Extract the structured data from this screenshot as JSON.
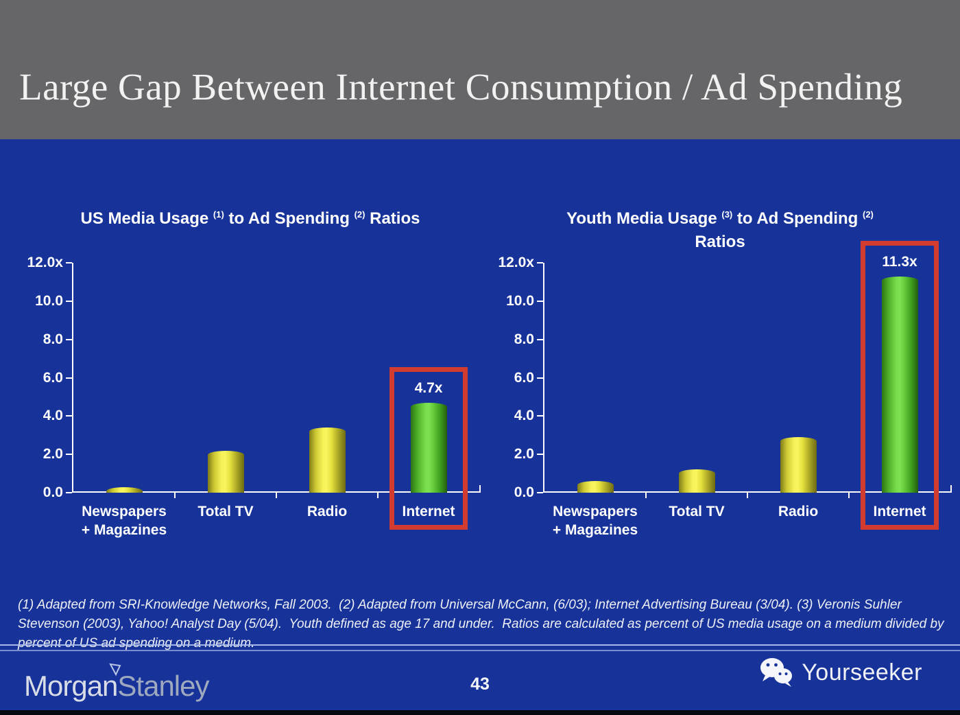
{
  "colors": {
    "header_bg": "#666669",
    "body_bg": "#17339a",
    "bar_yellow": "#f8f55e",
    "bar_green": "#7ee252",
    "highlight_red": "#d23b30",
    "axis_white": "#fdfdfd"
  },
  "header": {
    "title": "Large Gap Between Internet Consumption / Ad Spending"
  },
  "chart_data": [
    {
      "type": "bar",
      "title": "US Media Usage (1) to Ad Spending (2) Ratios",
      "title_lines": [
        [
          {
            "text": "US Media Usage "
          },
          {
            "text": "(1)",
            "sup": true
          },
          {
            "text": " to Ad Spending "
          },
          {
            "text": "(2)",
            "sup": true
          },
          {
            "text": " Ratios"
          }
        ]
      ],
      "categories": [
        "Newspapers + Magazines",
        "Total TV",
        "Radio",
        "Internet"
      ],
      "category_label_lines": [
        [
          "Newspapers",
          "+ Magazines"
        ],
        [
          "Total TV"
        ],
        [
          "Radio"
        ],
        [
          "Internet"
        ]
      ],
      "values": [
        0.3,
        2.2,
        3.4,
        4.7
      ],
      "bar_styles": [
        "yellow",
        "yellow",
        "yellow",
        "green"
      ],
      "data_labels": [
        "",
        "",
        "",
        "4.7x"
      ],
      "highlighted_index": 3,
      "ylim": [
        0,
        12
      ],
      "ytick_labels": [
        "12.0x",
        "10.0",
        "8.0",
        "6.0",
        "4.0",
        "2.0",
        "0.0"
      ],
      "grid": false,
      "legend": "none"
    },
    {
      "type": "bar",
      "title": "Youth Media Usage (3) to Ad Spending (2) Ratios",
      "title_lines": [
        [
          {
            "text": "Youth Media Usage "
          },
          {
            "text": "(3)",
            "sup": true
          },
          {
            "text": " to Ad Spending "
          },
          {
            "text": "(2)",
            "sup": true
          }
        ],
        [
          {
            "text": "Ratios"
          }
        ]
      ],
      "categories": [
        "Newspapers + Magazines",
        "Total TV",
        "Radio",
        "Internet"
      ],
      "category_label_lines": [
        [
          "Newspapers",
          "+ Magazines"
        ],
        [
          "Total TV"
        ],
        [
          "Radio"
        ],
        [
          "Internet"
        ]
      ],
      "values": [
        0.6,
        1.2,
        2.9,
        11.3
      ],
      "bar_styles": [
        "yellow",
        "yellow",
        "yellow",
        "green"
      ],
      "data_labels": [
        "",
        "",
        "",
        "11.3x"
      ],
      "highlighted_index": 3,
      "ylim": [
        0,
        12
      ],
      "ytick_labels": [
        "12.0x",
        "10.0",
        "8.0",
        "6.0",
        "4.0",
        "2.0",
        "0.0"
      ],
      "grid": false,
      "legend": "none"
    }
  ],
  "footnote": {
    "text": "(1) Adapted from SRI-Knowledge Networks, Fall 2003.  (2) Adapted from Universal McCann, (6/03); Internet Advertising Bureau (3/04). (3) Veronis Suhler Stevenson (2003), Yahoo! Analyst Day (5/04).  Youth defined as age 17 and under.  Ratios are calculated as percent of US media usage on a medium divided by percent of US ad spending on a medium."
  },
  "footer": {
    "logo_part1": "Morgan",
    "logo_part2": "Stanley",
    "page_number": "43",
    "brand": "Yourseeker",
    "brand_icon": "wechat-icon"
  }
}
